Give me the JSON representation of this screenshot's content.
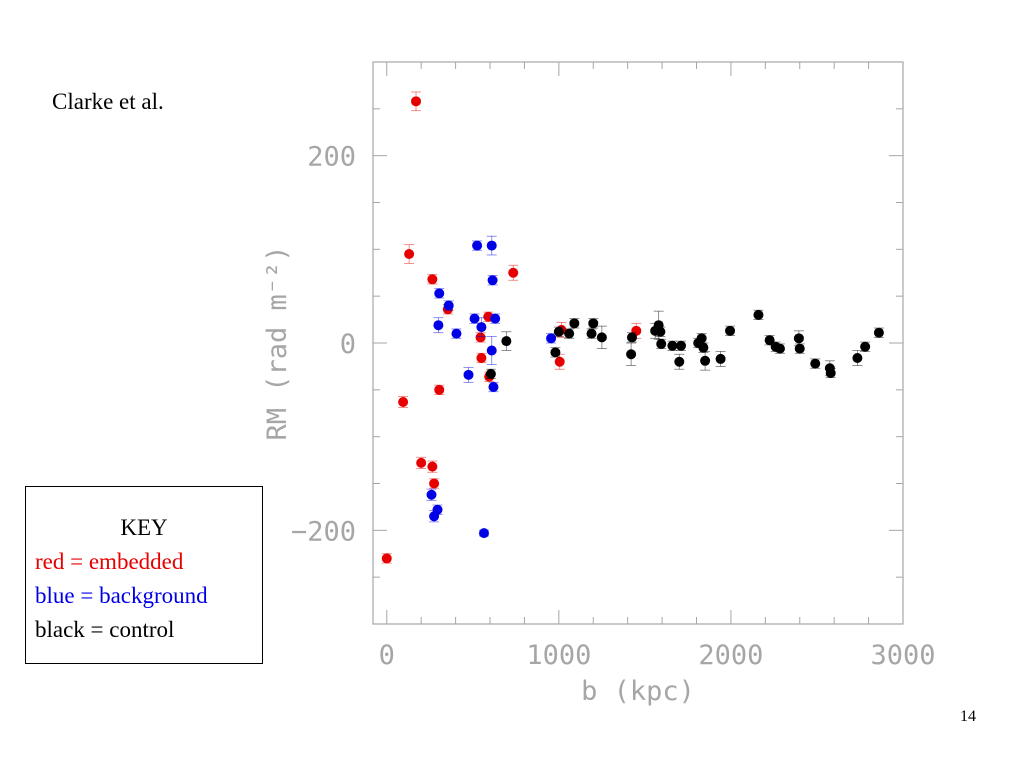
{
  "slide": {
    "citation": "Clarke et al.",
    "page_number": "14"
  },
  "key": {
    "title": "KEY",
    "entries": [
      {
        "text": "red = embedded",
        "color": "#e60000"
      },
      {
        "text": "blue = background",
        "color": "#0000e6"
      },
      {
        "text": "black = control",
        "color": "#000000"
      }
    ]
  },
  "colors": {
    "embedded": "#e60000",
    "background": "#0000e6",
    "control": "#000000",
    "axis": "#a6a6a6"
  },
  "chart_data": {
    "type": "scatter",
    "xlabel": "b (kpc)",
    "ylabel": "RM (rad m⁻²)",
    "xlim": [
      -80,
      3000
    ],
    "ylim": [
      -300,
      300
    ],
    "x_ticks": [
      0,
      1000,
      2000,
      3000
    ],
    "x_tick_labels": [
      "0",
      "1000",
      "2000",
      "3000"
    ],
    "y_ticks": [
      -200,
      0,
      200
    ],
    "y_tick_labels": [
      "−200",
      "0",
      "200"
    ],
    "grid": false,
    "legend": "none",
    "series": [
      {
        "name": "embedded",
        "color": "#e60000",
        "points": [
          {
            "x": 0,
            "y": -230,
            "err": 5
          },
          {
            "x": 95,
            "y": -63,
            "err": 6
          },
          {
            "x": 130,
            "y": 95,
            "err": 10
          },
          {
            "x": 170,
            "y": 258,
            "err": 10
          },
          {
            "x": 200,
            "y": -128,
            "err": 6
          },
          {
            "x": 265,
            "y": 68,
            "err": 5
          },
          {
            "x": 265,
            "y": -132,
            "err": 6
          },
          {
            "x": 275,
            "y": -150,
            "err": 5
          },
          {
            "x": 305,
            "y": -50,
            "err": 5
          },
          {
            "x": 355,
            "y": 36,
            "err": 5
          },
          {
            "x": 545,
            "y": 6,
            "err": 5
          },
          {
            "x": 550,
            "y": -16,
            "err": 5
          },
          {
            "x": 590,
            "y": 28,
            "err": 5
          },
          {
            "x": 595,
            "y": -36,
            "err": 5
          },
          {
            "x": 735,
            "y": 75,
            "err": 8
          },
          {
            "x": 1005,
            "y": -20,
            "err": 8
          },
          {
            "x": 1015,
            "y": 14,
            "err": 8
          },
          {
            "x": 1450,
            "y": 13,
            "err": 8
          }
        ]
      },
      {
        "name": "background",
        "color": "#0000e6",
        "points": [
          {
            "x": 260,
            "y": -162,
            "err": 6
          },
          {
            "x": 275,
            "y": -185,
            "err": 6
          },
          {
            "x": 295,
            "y": -178,
            "err": 5
          },
          {
            "x": 300,
            "y": 19,
            "err": 8
          },
          {
            "x": 305,
            "y": 53,
            "err": 5
          },
          {
            "x": 360,
            "y": 40,
            "err": 5
          },
          {
            "x": 405,
            "y": 10,
            "err": 5
          },
          {
            "x": 475,
            "y": -34,
            "err": 8
          },
          {
            "x": 510,
            "y": 26,
            "err": 5
          },
          {
            "x": 525,
            "y": 104,
            "err": 5
          },
          {
            "x": 550,
            "y": 17,
            "err": 10
          },
          {
            "x": 565,
            "y": -203,
            "err": 3
          },
          {
            "x": 610,
            "y": 104,
            "err": 10
          },
          {
            "x": 610,
            "y": -8,
            "err": 15
          },
          {
            "x": 615,
            "y": 67,
            "err": 5
          },
          {
            "x": 620,
            "y": -47,
            "err": 5
          },
          {
            "x": 630,
            "y": 26,
            "err": 5
          },
          {
            "x": 955,
            "y": 5,
            "err": 5
          }
        ]
      },
      {
        "name": "control",
        "color": "#000000",
        "points": [
          {
            "x": 605,
            "y": -33,
            "err": 5
          },
          {
            "x": 695,
            "y": 2,
            "err": 10
          },
          {
            "x": 980,
            "y": -10,
            "err": 5
          },
          {
            "x": 1000,
            "y": 12,
            "err": 5
          },
          {
            "x": 1060,
            "y": 10,
            "err": 5
          },
          {
            "x": 1090,
            "y": 21,
            "err": 5
          },
          {
            "x": 1190,
            "y": 10,
            "err": 5
          },
          {
            "x": 1200,
            "y": 21,
            "err": 5
          },
          {
            "x": 1250,
            "y": 6,
            "err": 12
          },
          {
            "x": 1420,
            "y": -12,
            "err": 12
          },
          {
            "x": 1425,
            "y": 6,
            "err": 5
          },
          {
            "x": 1560,
            "y": 13,
            "err": 8
          },
          {
            "x": 1580,
            "y": 19,
            "err": 15
          },
          {
            "x": 1590,
            "y": 12,
            "err": 5
          },
          {
            "x": 1595,
            "y": -1,
            "err": 5
          },
          {
            "x": 1660,
            "y": -3,
            "err": 5
          },
          {
            "x": 1700,
            "y": -20,
            "err": 8
          },
          {
            "x": 1710,
            "y": -3,
            "err": 5
          },
          {
            "x": 1810,
            "y": 0,
            "err": 5
          },
          {
            "x": 1830,
            "y": 5,
            "err": 5
          },
          {
            "x": 1840,
            "y": -5,
            "err": 5
          },
          {
            "x": 1850,
            "y": -19,
            "err": 10
          },
          {
            "x": 1940,
            "y": -17,
            "err": 8
          },
          {
            "x": 1995,
            "y": 13,
            "err": 5
          },
          {
            "x": 2160,
            "y": 30,
            "err": 5
          },
          {
            "x": 2225,
            "y": 3,
            "err": 5
          },
          {
            "x": 2260,
            "y": -4,
            "err": 5
          },
          {
            "x": 2285,
            "y": -6,
            "err": 5
          },
          {
            "x": 2395,
            "y": 5,
            "err": 8
          },
          {
            "x": 2400,
            "y": -6,
            "err": 5
          },
          {
            "x": 2490,
            "y": -22,
            "err": 5
          },
          {
            "x": 2575,
            "y": -27,
            "err": 8
          },
          {
            "x": 2580,
            "y": -32,
            "err": 5
          },
          {
            "x": 2735,
            "y": -16,
            "err": 8
          },
          {
            "x": 2780,
            "y": -4,
            "err": 5
          },
          {
            "x": 2860,
            "y": 11,
            "err": 5
          }
        ]
      }
    ]
  }
}
